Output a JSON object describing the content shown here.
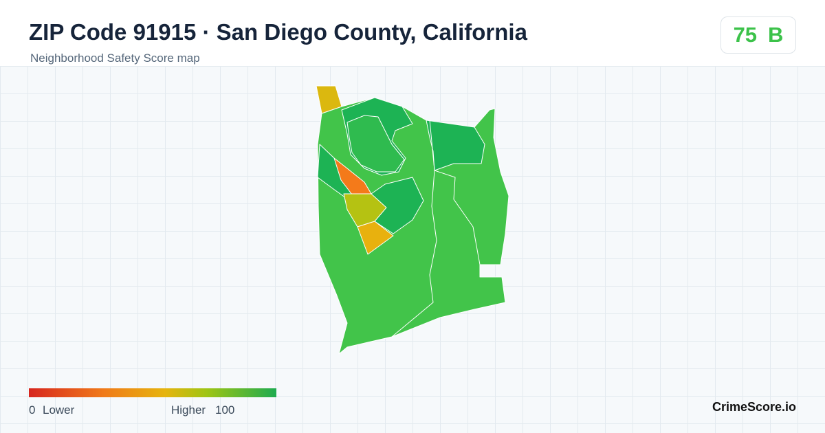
{
  "header": {
    "title": "ZIP Code 91915 · San Diego County, California",
    "subtitle": "Neighborhood Safety Score map",
    "score": 75,
    "grade": "B"
  },
  "legend": {
    "min": 0,
    "min_label": "Lower",
    "max_label": "Higher",
    "max": 100
  },
  "footer": {
    "brand": "CrimeScore.io"
  }
}
